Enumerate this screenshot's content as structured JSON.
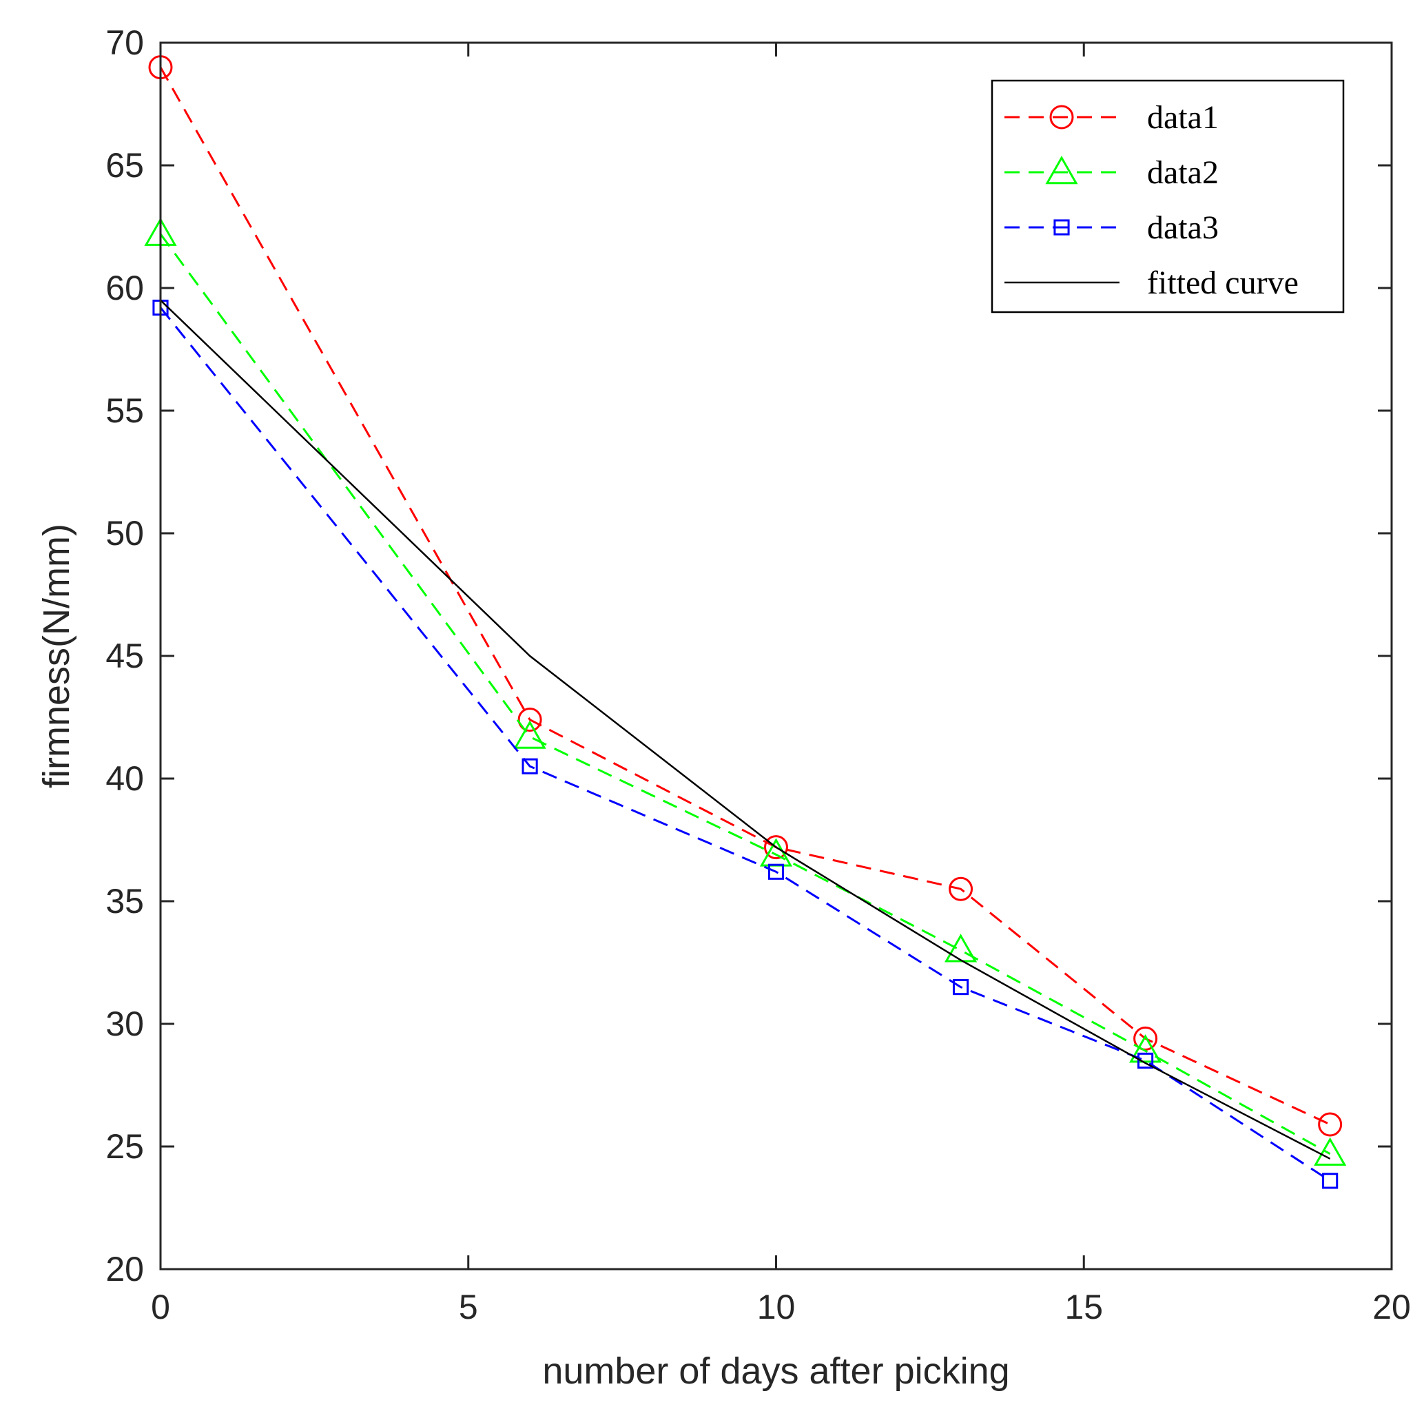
{
  "chart_data": {
    "type": "line",
    "title": "",
    "xlabel": "number of days after picking",
    "ylabel": "firmness(N/mm)",
    "xlim": [
      0,
      20
    ],
    "ylim": [
      20,
      70
    ],
    "xticks": [
      0,
      5,
      10,
      15,
      20
    ],
    "yticks": [
      20,
      25,
      30,
      35,
      40,
      45,
      50,
      55,
      60,
      65,
      70
    ],
    "grid": false,
    "legend_position": "top-right",
    "series": [
      {
        "name": "data1",
        "color": "#ff0000",
        "line_style": "dashed",
        "marker": "circle",
        "x": [
          0,
          6,
          10,
          13,
          16,
          19
        ],
        "y": [
          69.0,
          42.4,
          37.2,
          35.5,
          29.4,
          25.9
        ]
      },
      {
        "name": "data2",
        "color": "#00ff00",
        "line_style": "dashed",
        "marker": "triangle",
        "x": [
          0,
          6,
          10,
          13,
          16,
          19
        ],
        "y": [
          62.2,
          41.7,
          36.9,
          33.0,
          28.9,
          24.7
        ]
      },
      {
        "name": "data3",
        "color": "#0000ff",
        "line_style": "dashed",
        "marker": "square",
        "x": [
          0,
          6,
          10,
          13,
          16,
          19
        ],
        "y": [
          59.2,
          40.5,
          36.2,
          31.5,
          28.5,
          23.6
        ]
      },
      {
        "name": "fitted curve",
        "color": "#000000",
        "line_style": "solid",
        "marker": "none",
        "x": [
          0,
          6,
          10,
          13,
          16,
          19
        ],
        "y": [
          59.5,
          45.0,
          37.2,
          32.6,
          28.4,
          24.5
        ]
      }
    ]
  }
}
